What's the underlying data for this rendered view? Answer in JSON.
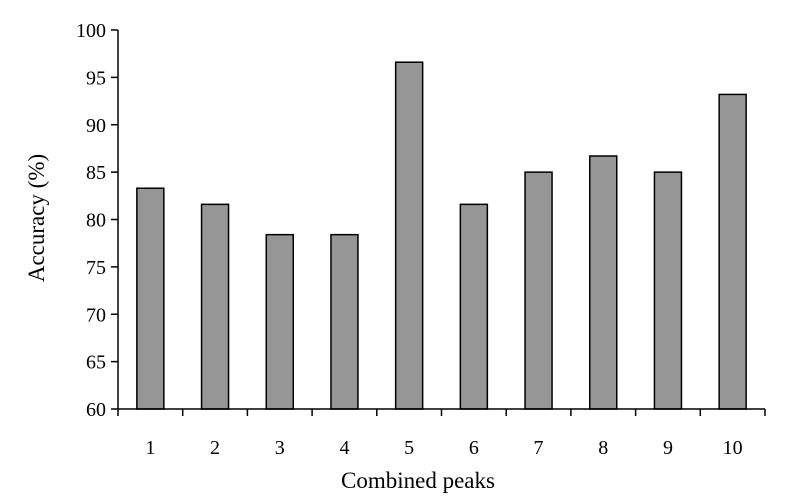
{
  "chart_data": {
    "type": "bar",
    "title": "",
    "xlabel": "Combined peaks",
    "ylabel": "Accuracy (%)",
    "categories": [
      "1",
      "2",
      "3",
      "4",
      "5",
      "6",
      "7",
      "8",
      "9",
      "10"
    ],
    "values": [
      83.3,
      81.6,
      78.4,
      78.4,
      96.6,
      81.6,
      85.0,
      86.7,
      85.0,
      93.2
    ],
    "ylim": [
      60,
      100
    ],
    "yticks": [
      "60",
      "65",
      "70",
      "75",
      "80",
      "85",
      "90",
      "95",
      "100"
    ],
    "grid": false,
    "legend": "none",
    "bar_color": "#969696",
    "bar_edge_color": "#000000"
  }
}
